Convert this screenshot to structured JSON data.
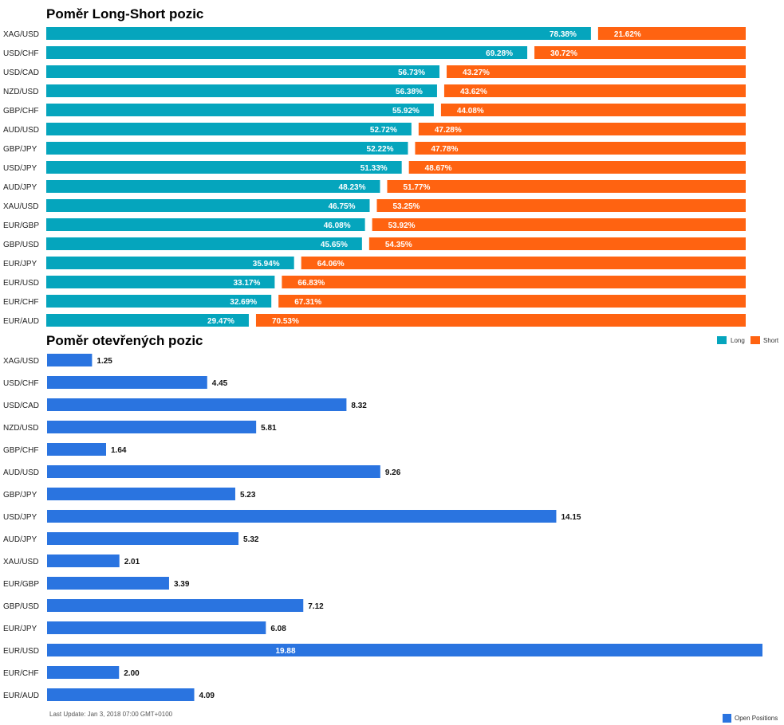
{
  "chart_data": [
    {
      "type": "bar",
      "orientation": "horizontal",
      "stacked": true,
      "title": "Poměr Long-Short pozic",
      "categories": [
        "XAG/USD",
        "USD/CHF",
        "USD/CAD",
        "NZD/USD",
        "GBP/CHF",
        "AUD/USD",
        "GBP/JPY",
        "USD/JPY",
        "AUD/JPY",
        "XAU/USD",
        "EUR/GBP",
        "GBP/USD",
        "EUR/JPY",
        "EUR/USD",
        "EUR/CHF",
        "EUR/AUD"
      ],
      "series": [
        {
          "name": "Long",
          "color": "#05A5BD",
          "values": [
            78.38,
            69.28,
            56.73,
            56.38,
            55.92,
            52.72,
            52.22,
            51.33,
            48.23,
            46.75,
            46.08,
            45.65,
            35.94,
            33.17,
            32.69,
            29.47
          ],
          "labels": [
            "78.38%",
            "69.28%",
            "56.73%",
            "56.38%",
            "55.92%",
            "52.72%",
            "52.22%",
            "51.33%",
            "48.23%",
            "46.75%",
            "46.08%",
            "45.65%",
            "35.94%",
            "33.17%",
            "32.69%",
            "29.47%"
          ]
        },
        {
          "name": "Short",
          "color": "#FF6311",
          "values": [
            21.62,
            30.72,
            43.27,
            43.62,
            44.08,
            47.28,
            47.78,
            48.67,
            51.77,
            53.25,
            53.92,
            54.35,
            64.06,
            66.83,
            67.31,
            70.53
          ],
          "labels": [
            "21.62%",
            "30.72%",
            "43.27%",
            "43.62%",
            "44.08%",
            "47.28%",
            "47.78%",
            "48.67%",
            "51.77%",
            "53.25%",
            "53.92%",
            "54.35%",
            "64.06%",
            "66.83%",
            "67.31%",
            "70.53%"
          ]
        }
      ],
      "xlim": [
        0,
        100
      ],
      "legend": "top-right"
    },
    {
      "type": "bar",
      "orientation": "horizontal",
      "title": "Poměr otevřených pozic",
      "categories": [
        "XAG/USD",
        "USD/CHF",
        "USD/CAD",
        "NZD/USD",
        "GBP/CHF",
        "AUD/USD",
        "GBP/JPY",
        "USD/JPY",
        "AUD/JPY",
        "XAU/USD",
        "EUR/GBP",
        "GBP/USD",
        "EUR/JPY",
        "EUR/USD",
        "EUR/CHF",
        "EUR/AUD"
      ],
      "series": [
        {
          "name": "Open Positions",
          "color": "#2A74E0",
          "values": [
            1.25,
            4.45,
            8.32,
            5.81,
            1.64,
            9.26,
            5.23,
            14.15,
            5.32,
            2.01,
            3.39,
            7.12,
            6.08,
            19.88,
            2.0,
            4.09
          ],
          "labels": [
            "1.25",
            "4.45",
            "8.32",
            "5.81",
            "1.64",
            "9.26",
            "5.23",
            "14.15",
            "5.32",
            "2.01",
            "3.39",
            "7.12",
            "6.08",
            "19.88",
            "2.00",
            "4.09"
          ]
        }
      ],
      "xlim": [
        0,
        19.88
      ],
      "legend": "bottom-right",
      "footnote": "Last Update: Jan 3, 2018 07:00 GMT+0100"
    }
  ]
}
